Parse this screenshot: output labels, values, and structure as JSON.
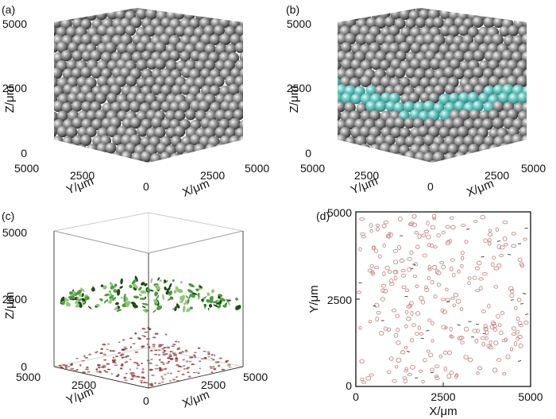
{
  "panels": {
    "a": {
      "label": "(a)",
      "z_ticks": [
        "5000",
        "2500",
        "0"
      ],
      "z_label": "Z/μm",
      "y_ticks": [
        "5000",
        "2500",
        "0"
      ],
      "y_label": "Y/μm",
      "x_ticks": [
        "2500",
        "5000"
      ],
      "x_label": "X/μm",
      "colors": {
        "sphere": "#9a9a9a",
        "sphere_shade": "#3c3c3c"
      }
    },
    "b": {
      "label": "(b)",
      "z_ticks": [
        "5000",
        "2500",
        "0"
      ],
      "z_label": "Z/μm",
      "y_ticks": [
        "5000",
        "2500",
        "0"
      ],
      "y_label": "Y/μm",
      "x_ticks": [
        "2500",
        "5000"
      ],
      "x_label": "X/μm",
      "colors": {
        "sphere": "#9a9a9a",
        "highlight": "#6cc9c4"
      }
    },
    "c": {
      "label": "(c)",
      "z_ticks": [
        "5000",
        "2500",
        "0"
      ],
      "z_label": "Z/μm",
      "y_ticks": [
        "5000",
        "2500",
        "0"
      ],
      "y_label": "Y/μm",
      "x_ticks": [
        "2500",
        "5000"
      ],
      "x_label": "X/μm",
      "colors": {
        "fragment": "#4e9a3e",
        "projection": "#8a3a3a"
      }
    },
    "d": {
      "label": "(d)",
      "y_ticks": [
        "5000",
        "2500",
        "0"
      ],
      "y_label": "Y/μm",
      "x_ticks": [
        "0",
        "2500",
        "5000"
      ],
      "x_label": "X/μm",
      "colors": {
        "circle": "#c48a8a"
      }
    }
  }
}
